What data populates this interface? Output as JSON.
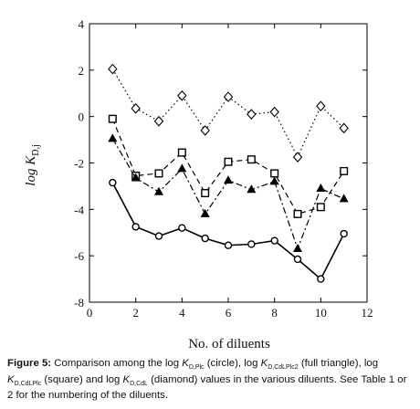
{
  "chart_data": {
    "type": "line",
    "xlabel": "No. of diluents",
    "ylabel_base": "log K",
    "ylabel_sub": "D,j",
    "xlim": [
      0,
      12
    ],
    "ylim": [
      -8,
      4
    ],
    "xticks": [
      0,
      2,
      4,
      6,
      8,
      10,
      12
    ],
    "yticks": [
      4,
      2,
      0,
      -2,
      -4,
      -6,
      -8
    ],
    "x": [
      1,
      2,
      3,
      4,
      5,
      6,
      7,
      8,
      9,
      10,
      11
    ],
    "series": [
      {
        "marker": "diamond",
        "line": "dotted",
        "values": [
          2.05,
          0.35,
          -0.2,
          0.9,
          -0.6,
          0.85,
          0.1,
          0.2,
          -1.75,
          0.45,
          -0.5
        ]
      },
      {
        "marker": "square",
        "line": "dashed",
        "values": [
          -0.1,
          -2.55,
          -2.45,
          -1.55,
          -3.3,
          -1.95,
          -1.85,
          -2.45,
          -4.2,
          -3.9,
          -2.35
        ]
      },
      {
        "marker": "triangle",
        "line": "dashdot",
        "values": [
          -0.95,
          -2.65,
          -3.25,
          -2.25,
          -4.2,
          -2.75,
          -3.15,
          -2.8,
          -5.7,
          -3.1,
          -3.55
        ]
      },
      {
        "marker": "circle",
        "line": "solid",
        "values": [
          -2.85,
          -4.75,
          -5.15,
          -4.8,
          -5.25,
          -5.55,
          -5.5,
          -5.35,
          -6.15,
          -7.0,
          -5.05
        ]
      }
    ]
  },
  "caption": {
    "label": "Figure 5:",
    "p1": " Comparison among the log ",
    "k1": "K",
    "s1": "D,Plc",
    "p2": " (circle), log ",
    "k2": "K",
    "s2": "D,CdLPlc2",
    "p3": " (full triangle), log ",
    "k3": "K",
    "s3": "D,CdLPlc",
    "p4": " (square) and log ",
    "k4": "K",
    "s4": "D,CdL",
    "p5": " (diamond) values in the various diluents. See Table 1 or 2 for the numbering of the diluents."
  }
}
